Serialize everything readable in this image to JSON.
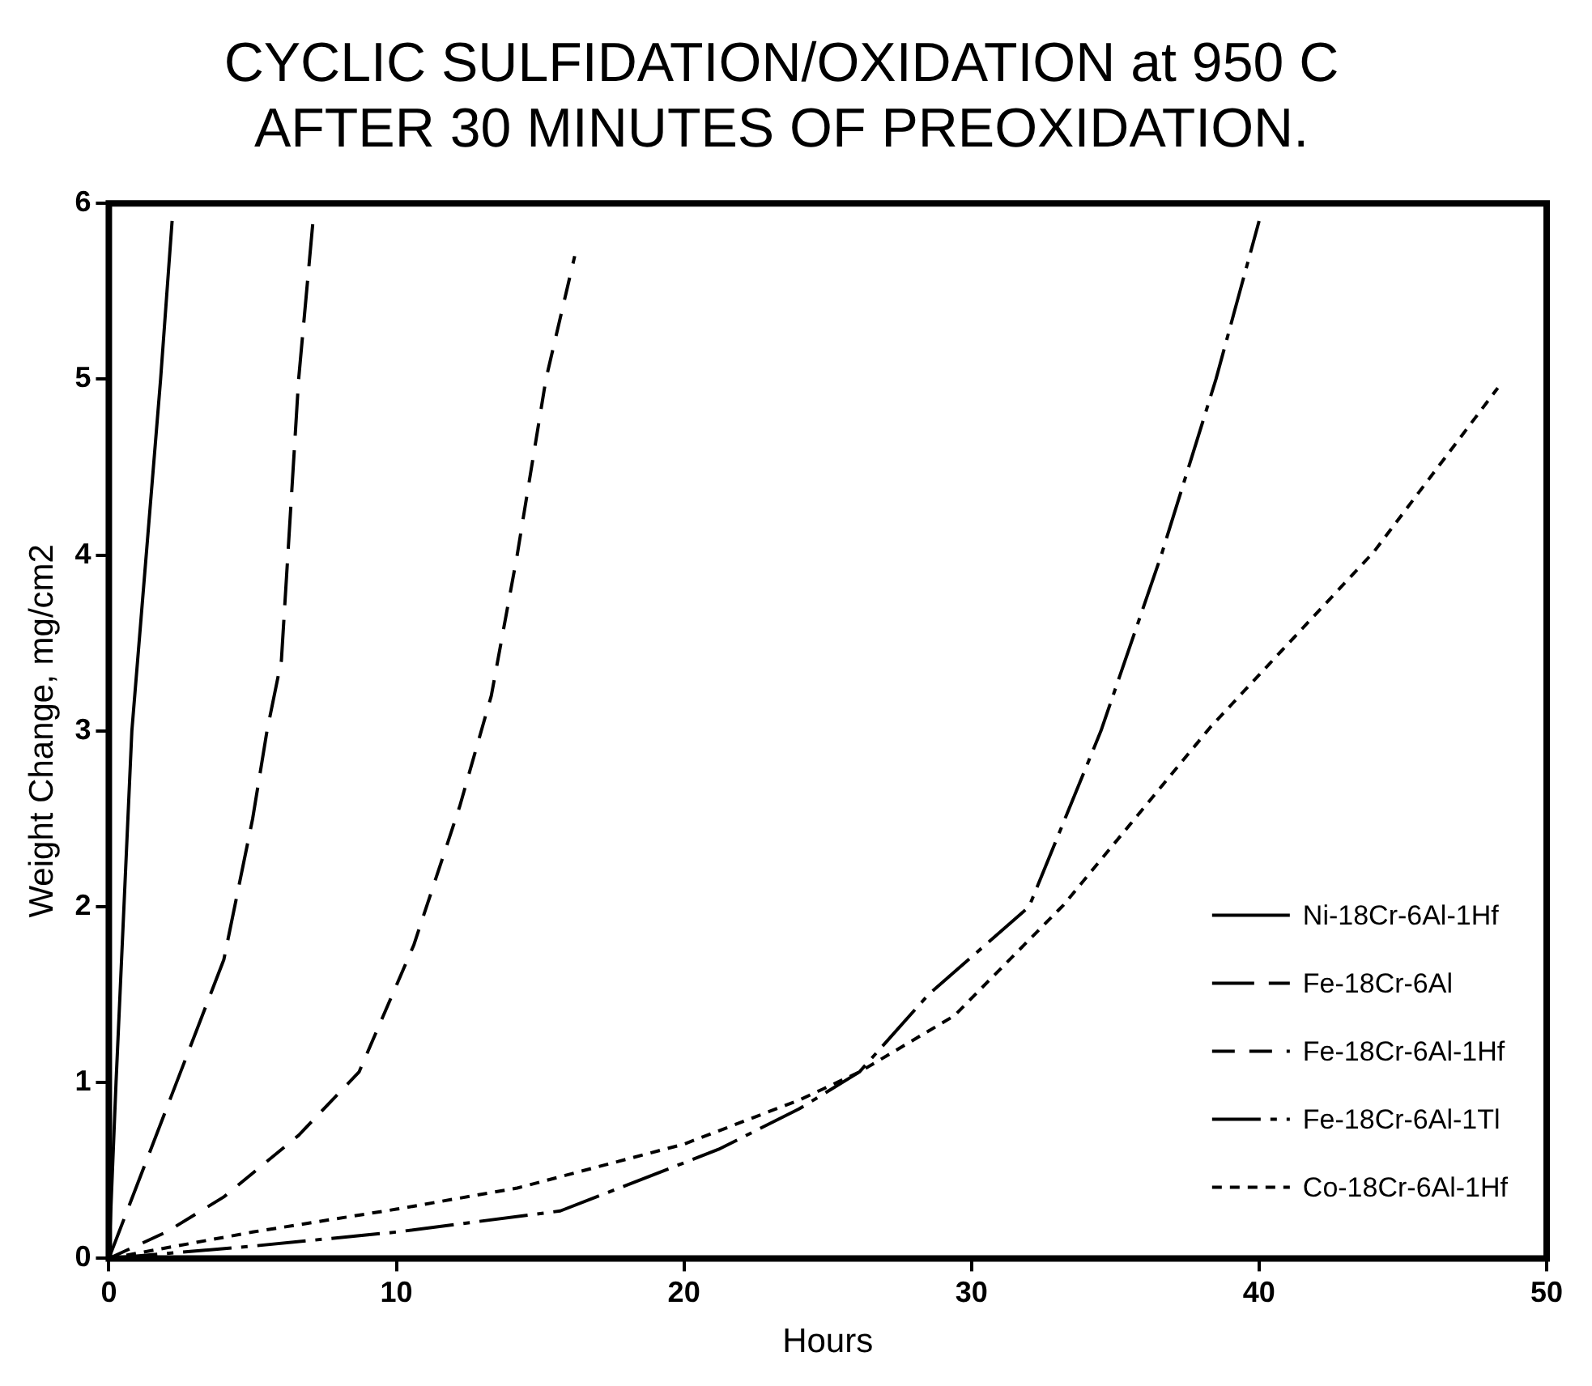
{
  "chart_data": {
    "type": "line",
    "title": "CYCLIC SULFIDATION/OXIDATION at 950 C\nAFTER 30 MINUTES OF PREOXIDATION.",
    "xlabel": "Hours",
    "ylabel": "Weight Change, mg/cm2",
    "xlim": [
      0,
      50
    ],
    "xticks": [
      0,
      10,
      20,
      30,
      40,
      50
    ],
    "ylim": [
      0,
      6
    ],
    "yticks": [
      0,
      1,
      2,
      3,
      4,
      5,
      6
    ],
    "grid": false,
    "legend": "bottom right",
    "marker": "none",
    "series": [
      {
        "name": "Ni-18Cr-6Al-1Hf",
        "color": "#000000",
        "line_style": "solid",
        "x": [
          0,
          0.25,
          0.8,
          1.8,
          2.2
        ],
        "values": [
          0,
          1,
          3,
          5,
          5.9
        ]
      },
      {
        "name": "Fe-18Cr-6Al",
        "color": "#000000",
        "line_style": "dashed",
        "x": [
          0,
          2,
          4,
          5,
          5.5,
          6,
          6.6,
          7.1
        ],
        "values": [
          0,
          0.85,
          1.7,
          2.5,
          3,
          3.4,
          5,
          5.9
        ]
      },
      {
        "name": "Fe-18Cr-6Al-1Hf",
        "color": "#000000",
        "line_style": "dashed",
        "x": [
          0,
          2,
          4,
          6.6,
          8.7,
          10.6,
          12.2,
          13.3,
          14.2,
          15.2,
          16.2
        ],
        "values": [
          0,
          0.15,
          0.35,
          0.7,
          1.06,
          1.78,
          2.57,
          3.2,
          4,
          5,
          5.7
        ]
      },
      {
        "name": "Fe-18Cr-6Al-1Tl",
        "color": "#000000",
        "line_style": "dashed",
        "x": [
          0,
          5,
          10,
          15.7,
          21.2,
          24,
          26.1,
          28.5,
          32,
          34.5,
          36.6,
          38.5,
          40
        ],
        "values": [
          0,
          0.07,
          0.15,
          0.27,
          0.62,
          0.85,
          1.06,
          1.5,
          2,
          3,
          4,
          5,
          5.9
        ]
      },
      {
        "name": "Co-18Cr-6Al-1Hf",
        "color": "#000000",
        "line_style": "dotted",
        "x": [
          0,
          5,
          10,
          14.2,
          20,
          24,
          26.1,
          29.4,
          33.2,
          38.3,
          44,
          48.3
        ],
        "values": [
          0,
          0.15,
          0.28,
          0.4,
          0.65,
          0.9,
          1.06,
          1.38,
          2.01,
          3.02,
          4.02,
          4.95
        ]
      }
    ]
  }
}
